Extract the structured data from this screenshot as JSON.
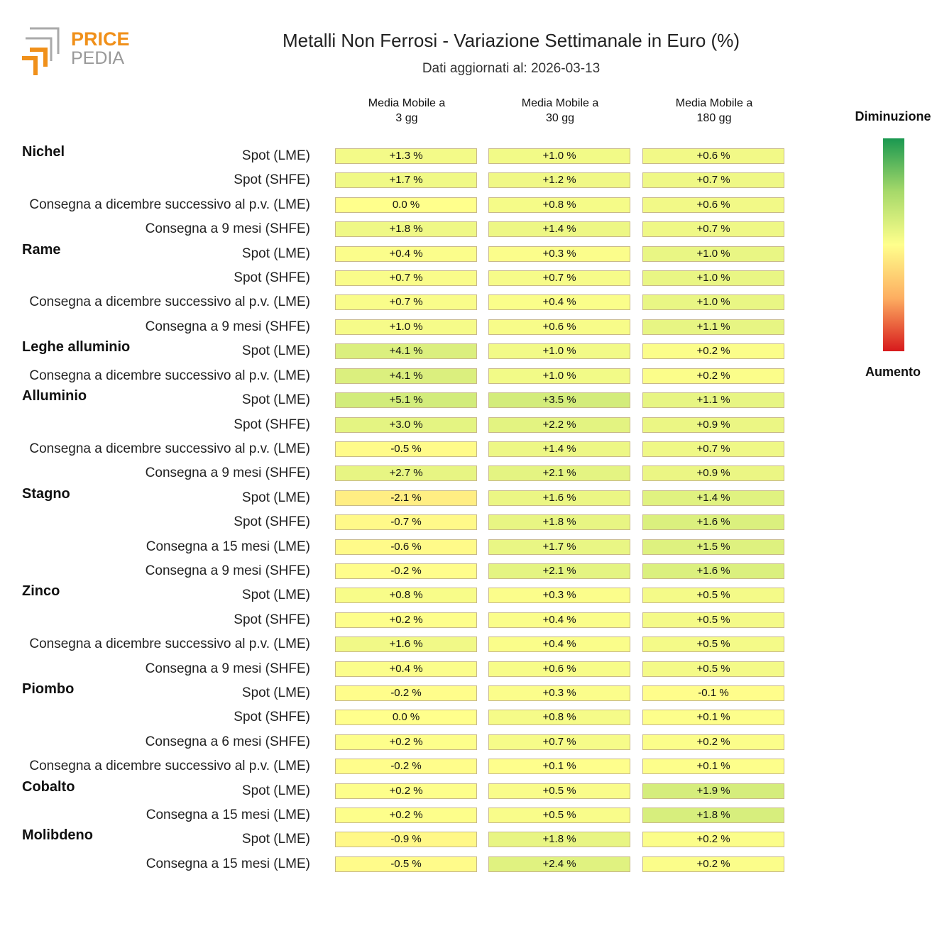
{
  "logo": {
    "top": "PRICE",
    "bottom": "PEDIA"
  },
  "chart_data": {
    "type": "heatmap",
    "title": "Metalli Non Ferrosi - Variazione Settimanale in Euro (%)",
    "subtitle": "Dati aggiornati al: 2026-03-13",
    "colorbar": {
      "top_label": "Diminuzione",
      "bottom_label": "Aumento"
    },
    "colormap": [
      "#1a9850",
      "#a6d96a",
      "#ffff8c",
      "#fdae61",
      "#d7191c"
    ],
    "columns": [
      {
        "label": "Media Mobile a\n3 gg",
        "clim": [
          -20,
          20
        ]
      },
      {
        "label": "Media Mobile a\n30 gg",
        "clim": [
          -14,
          14
        ]
      },
      {
        "label": "Media Mobile a\n180 gg",
        "clim": [
          -8,
          8
        ]
      }
    ],
    "groups": [
      {
        "name": "Nichel",
        "rows": [
          {
            "label": "Spot (LME)",
            "values": [
              1.3,
              1.0,
              0.6
            ],
            "value_labels": [
              "+1.3 %",
              "+1.0 %",
              "+0.6 %"
            ]
          },
          {
            "label": "Spot (SHFE)",
            "values": [
              1.7,
              1.2,
              0.7
            ],
            "value_labels": [
              "+1.7 %",
              "+1.2 %",
              "+0.7 %"
            ]
          },
          {
            "label": "Consegna a dicembre successivo al p.v. (LME)",
            "values": [
              0.0,
              0.8,
              0.6
            ],
            "value_labels": [
              "0.0 %",
              "+0.8 %",
              "+0.6 %"
            ]
          },
          {
            "label": "Consegna a 9 mesi (SHFE)",
            "values": [
              1.8,
              1.4,
              0.7
            ],
            "value_labels": [
              "+1.8 %",
              "+1.4 %",
              "+0.7 %"
            ]
          }
        ]
      },
      {
        "name": "Rame",
        "rows": [
          {
            "label": "Spot (LME)",
            "values": [
              0.4,
              0.3,
              1.0
            ],
            "value_labels": [
              "+0.4 %",
              "+0.3 %",
              "+1.0 %"
            ]
          },
          {
            "label": "Spot (SHFE)",
            "values": [
              0.7,
              0.7,
              1.0
            ],
            "value_labels": [
              "+0.7 %",
              "+0.7 %",
              "+1.0 %"
            ]
          },
          {
            "label": "Consegna a dicembre successivo al p.v. (LME)",
            "values": [
              0.7,
              0.4,
              1.0
            ],
            "value_labels": [
              "+0.7 %",
              "+0.4 %",
              "+1.0 %"
            ]
          },
          {
            "label": "Consegna a 9 mesi (SHFE)",
            "values": [
              1.0,
              0.6,
              1.1
            ],
            "value_labels": [
              "+1.0 %",
              "+0.6 %",
              "+1.1 %"
            ]
          }
        ]
      },
      {
        "name": "Leghe alluminio",
        "rows": [
          {
            "label": "Spot (LME)",
            "values": [
              4.1,
              1.0,
              0.2
            ],
            "value_labels": [
              "+4.1 %",
              "+1.0 %",
              "+0.2 %"
            ]
          },
          {
            "label": "Consegna a dicembre successivo al p.v. (LME)",
            "values": [
              4.1,
              1.0,
              0.2
            ],
            "value_labels": [
              "+4.1 %",
              "+1.0 %",
              "+0.2 %"
            ]
          }
        ]
      },
      {
        "name": "Alluminio",
        "rows": [
          {
            "label": "Spot (LME)",
            "values": [
              5.1,
              3.5,
              1.1
            ],
            "value_labels": [
              "+5.1 %",
              "+3.5 %",
              "+1.1 %"
            ]
          },
          {
            "label": "Spot (SHFE)",
            "values": [
              3.0,
              2.2,
              0.9
            ],
            "value_labels": [
              "+3.0 %",
              "+2.2 %",
              "+0.9 %"
            ]
          },
          {
            "label": "Consegna a dicembre successivo al p.v. (LME)",
            "values": [
              -0.5,
              1.4,
              0.7
            ],
            "value_labels": [
              "-0.5 %",
              "+1.4 %",
              "+0.7 %"
            ]
          },
          {
            "label": "Consegna a 9 mesi (SHFE)",
            "values": [
              2.7,
              2.1,
              0.9
            ],
            "value_labels": [
              "+2.7 %",
              "+2.1 %",
              "+0.9 %"
            ]
          }
        ]
      },
      {
        "name": "Stagno",
        "rows": [
          {
            "label": "Spot (LME)",
            "values": [
              -2.1,
              1.6,
              1.4
            ],
            "value_labels": [
              "-2.1 %",
              "+1.6 %",
              "+1.4 %"
            ]
          },
          {
            "label": "Spot (SHFE)",
            "values": [
              -0.7,
              1.8,
              1.6
            ],
            "value_labels": [
              "-0.7 %",
              "+1.8 %",
              "+1.6 %"
            ]
          },
          {
            "label": "Consegna a 15 mesi (LME)",
            "values": [
              -0.6,
              1.7,
              1.5
            ],
            "value_labels": [
              "-0.6 %",
              "+1.7 %",
              "+1.5 %"
            ]
          },
          {
            "label": "Consegna a 9 mesi (SHFE)",
            "values": [
              -0.2,
              2.1,
              1.6
            ],
            "value_labels": [
              "-0.2 %",
              "+2.1 %",
              "+1.6 %"
            ]
          }
        ]
      },
      {
        "name": "Zinco",
        "rows": [
          {
            "label": "Spot (LME)",
            "values": [
              0.8,
              0.3,
              0.5
            ],
            "value_labels": [
              "+0.8 %",
              "+0.3 %",
              "+0.5 %"
            ]
          },
          {
            "label": "Spot (SHFE)",
            "values": [
              0.2,
              0.4,
              0.5
            ],
            "value_labels": [
              "+0.2 %",
              "+0.4 %",
              "+0.5 %"
            ]
          },
          {
            "label": "Consegna a dicembre successivo al p.v. (LME)",
            "values": [
              1.6,
              0.4,
              0.5
            ],
            "value_labels": [
              "+1.6 %",
              "+0.4 %",
              "+0.5 %"
            ]
          },
          {
            "label": "Consegna a 9 mesi (SHFE)",
            "values": [
              0.4,
              0.6,
              0.5
            ],
            "value_labels": [
              "+0.4 %",
              "+0.6 %",
              "+0.5 %"
            ]
          }
        ]
      },
      {
        "name": "Piombo",
        "rows": [
          {
            "label": "Spot (LME)",
            "values": [
              -0.2,
              0.3,
              -0.1
            ],
            "value_labels": [
              "-0.2 %",
              "+0.3 %",
              "-0.1 %"
            ]
          },
          {
            "label": "Spot (SHFE)",
            "values": [
              0.0,
              0.8,
              0.1
            ],
            "value_labels": [
              "0.0 %",
              "+0.8 %",
              "+0.1 %"
            ]
          },
          {
            "label": "Consegna a 6 mesi (SHFE)",
            "values": [
              0.2,
              0.7,
              0.2
            ],
            "value_labels": [
              "+0.2 %",
              "+0.7 %",
              "+0.2 %"
            ]
          },
          {
            "label": "Consegna a dicembre successivo al p.v. (LME)",
            "values": [
              -0.2,
              0.1,
              0.1
            ],
            "value_labels": [
              "-0.2 %",
              "+0.1 %",
              "+0.1 %"
            ]
          }
        ]
      },
      {
        "name": "Cobalto",
        "rows": [
          {
            "label": "Spot (LME)",
            "values": [
              0.2,
              0.5,
              1.9
            ],
            "value_labels": [
              "+0.2 %",
              "+0.5 %",
              "+1.9 %"
            ]
          },
          {
            "label": "Consegna a 15 mesi (LME)",
            "values": [
              0.2,
              0.5,
              1.8
            ],
            "value_labels": [
              "+0.2 %",
              "+0.5 %",
              "+1.8 %"
            ]
          }
        ]
      },
      {
        "name": "Molibdeno",
        "rows": [
          {
            "label": "Spot (LME)",
            "values": [
              -0.9,
              1.8,
              0.2
            ],
            "value_labels": [
              "-0.9 %",
              "+1.8 %",
              "+0.2 %"
            ]
          },
          {
            "label": "Consegna a 15 mesi (LME)",
            "values": [
              -0.5,
              2.4,
              0.2
            ],
            "value_labels": [
              "-0.5 %",
              "+2.4 %",
              "+0.2 %"
            ]
          }
        ]
      }
    ]
  }
}
